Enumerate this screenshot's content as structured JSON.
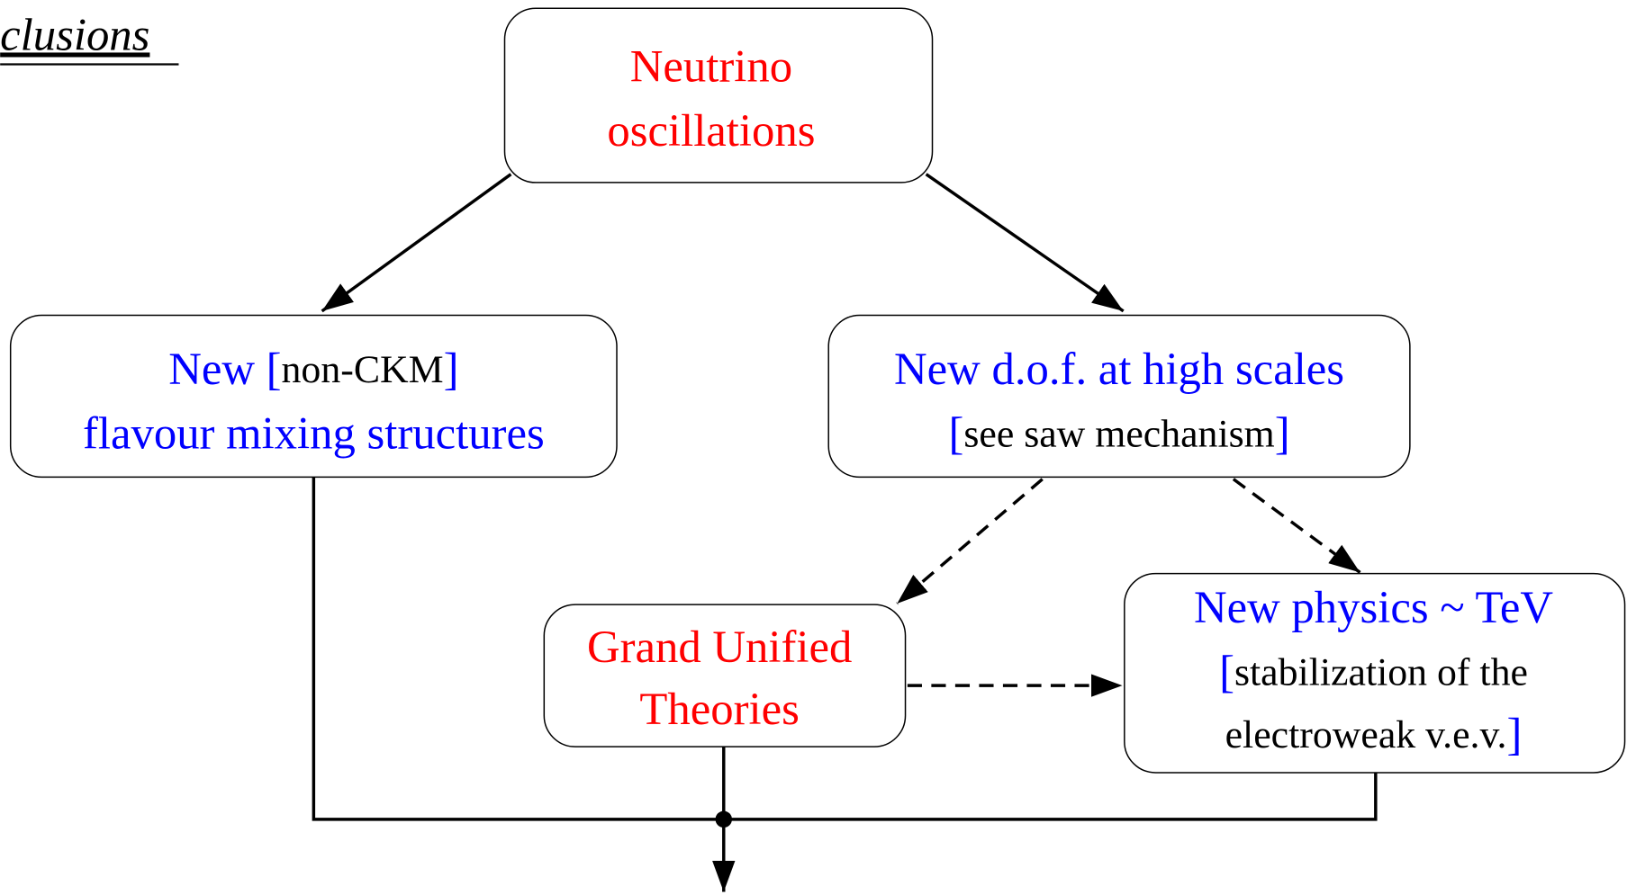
{
  "title": "clusions",
  "nodes": [
    {
      "lines": [
        [
          {
            "text": "Neutrino",
            "color": "#ff0000"
          }
        ],
        [
          {
            "text": "oscillations",
            "color": "#ff0000"
          }
        ]
      ]
    },
    {
      "lines": [
        [
          {
            "text": "New [",
            "color": "#0000ff"
          },
          {
            "text": "non-CKM",
            "color": "#000000"
          },
          {
            "text": "]",
            "color": "#0000ff"
          }
        ],
        [
          {
            "text": "flavour mixing structures",
            "color": "#0000ff"
          }
        ]
      ]
    },
    {
      "lines": [
        [
          {
            "text": "New d.o.f. at high scales",
            "color": "#0000ff"
          }
        ],
        [
          {
            "text": "[",
            "color": "#0000ff"
          },
          {
            "text": "see saw mechanism",
            "color": "#000000"
          },
          {
            "text": "]",
            "color": "#0000ff"
          }
        ]
      ]
    },
    {
      "lines": [
        [
          {
            "text": "Grand Unified",
            "color": "#ff0000"
          }
        ],
        [
          {
            "text": "Theories",
            "color": "#ff0000"
          }
        ]
      ]
    },
    {
      "lines": [
        [
          {
            "text": "New physics ~ TeV",
            "color": "#0000ff"
          }
        ],
        [
          {
            "text": "[",
            "color": "#0000ff"
          },
          {
            "text": "stabilization of the",
            "color": "#000000"
          }
        ],
        [
          {
            "text": "electroweak v.e.v.",
            "color": "#000000"
          },
          {
            "text": "]",
            "color": "#0000ff"
          }
        ]
      ]
    }
  ]
}
